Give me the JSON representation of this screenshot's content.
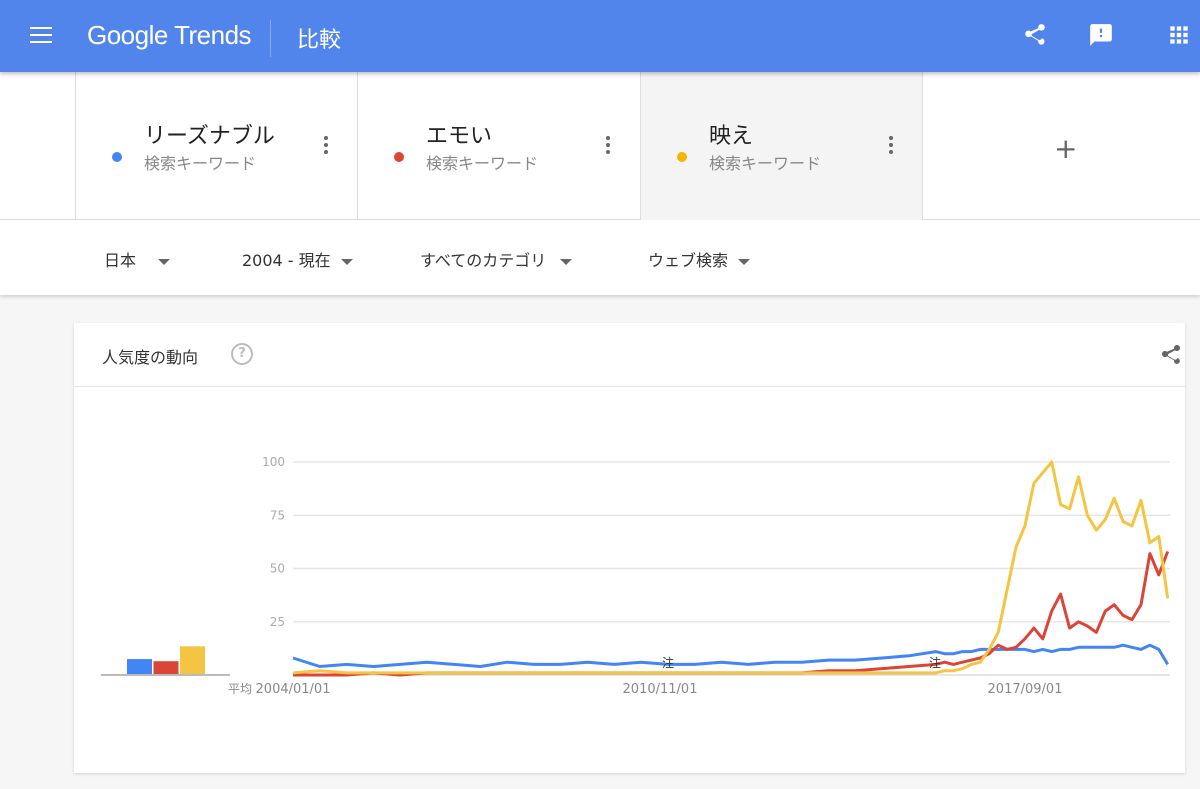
{
  "header": {
    "logo": "Google Trends",
    "title": "比較",
    "icons": [
      "menu-icon",
      "share-icon",
      "feedback-icon",
      "apps-icon"
    ],
    "color": "#5285ec"
  },
  "terms": [
    {
      "name": "リーズナブル",
      "sub": "検索キーワード",
      "color": "#4285f4"
    },
    {
      "name": "エモい",
      "sub": "検索キーワード",
      "color": "#db4437"
    },
    {
      "name": "映え",
      "sub": "検索キーワード",
      "color": "#f4b400"
    }
  ],
  "add_label": "+",
  "filters": {
    "region": "日本",
    "period": "2004 - 現在",
    "category": "すべてのカテゴリ",
    "search_type": "ウェブ検索"
  },
  "panel": {
    "title": "人気度の動向",
    "help": "?",
    "avg_label": "平均",
    "note_marker": "注"
  },
  "chart_data": {
    "type": "line",
    "xlabel": "",
    "ylabel": "",
    "ylim": [
      0,
      100
    ],
    "yticks": [
      "100",
      "75",
      "50",
      "25"
    ],
    "xtick_labels": [
      "2004/01/01",
      "2010/11/01",
      "2017/09/01"
    ],
    "grid": true,
    "x": [
      "2004-01",
      "2004-07",
      "2005-01",
      "2005-07",
      "2006-01",
      "2006-07",
      "2007-01",
      "2007-07",
      "2008-01",
      "2008-07",
      "2009-01",
      "2009-07",
      "2010-01",
      "2010-07",
      "2011-01",
      "2011-07",
      "2012-01",
      "2012-07",
      "2013-01",
      "2013-07",
      "2014-01",
      "2014-07",
      "2015-01",
      "2015-07",
      "2016-01",
      "2016-03",
      "2016-05",
      "2016-07",
      "2016-09",
      "2016-11",
      "2017-01",
      "2017-03",
      "2017-05",
      "2017-07",
      "2017-09",
      "2017-11",
      "2018-01",
      "2018-03",
      "2018-05",
      "2018-07",
      "2018-09",
      "2018-11",
      "2019-01",
      "2019-03",
      "2019-05",
      "2019-07",
      "2019-09",
      "2019-11",
      "2020-01",
      "2020-03",
      "2020-05"
    ],
    "series": [
      {
        "name": "リーズナブル",
        "color": "#4285f4",
        "values": [
          8,
          4,
          5,
          4,
          5,
          6,
          5,
          4,
          6,
          5,
          5,
          6,
          5,
          6,
          5,
          5,
          6,
          5,
          6,
          6,
          7,
          7,
          8,
          9,
          11,
          10,
          10,
          11,
          11,
          12,
          12,
          12,
          12,
          12,
          12,
          11,
          12,
          11,
          12,
          12,
          13,
          13,
          13,
          13,
          13,
          14,
          13,
          12,
          14,
          12,
          5
        ]
      },
      {
        "name": "エモい",
        "color": "#db4437",
        "values": [
          0,
          0,
          0,
          1,
          0,
          1,
          1,
          1,
          1,
          1,
          1,
          1,
          1,
          1,
          1,
          1,
          1,
          1,
          1,
          1,
          2,
          2,
          3,
          4,
          5,
          6,
          5,
          6,
          7,
          8,
          10,
          14,
          12,
          13,
          17,
          22,
          17,
          30,
          38,
          22,
          25,
          23,
          20,
          30,
          33,
          28,
          26,
          33,
          57,
          47,
          58
        ]
      },
      {
        "name": "映え",
        "color": "#f4c542",
        "values": [
          1,
          2,
          1,
          1,
          1,
          1,
          1,
          1,
          1,
          1,
          1,
          1,
          1,
          1,
          1,
          1,
          1,
          1,
          1,
          1,
          1,
          1,
          1,
          1,
          1,
          2,
          2,
          3,
          5,
          6,
          12,
          20,
          40,
          60,
          70,
          90,
          95,
          100,
          80,
          78,
          93,
          75,
          68,
          73,
          83,
          72,
          70,
          82,
          62,
          65,
          36
        ]
      }
    ],
    "averages": [
      7,
      6,
      13
    ]
  }
}
